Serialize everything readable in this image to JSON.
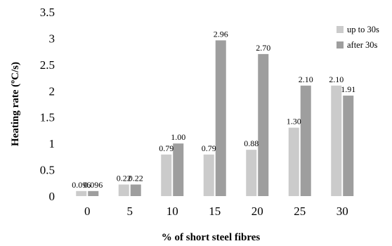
{
  "chart_data": {
    "type": "bar",
    "categories": [
      "0",
      "5",
      "10",
      "15",
      "20",
      "25",
      "30"
    ],
    "series": [
      {
        "name": "up to 30s",
        "color": "#cbcbcb",
        "values": [
          0.096,
          0.22,
          0.79,
          0.79,
          0.88,
          1.3,
          2.1
        ],
        "labels": [
          "0.096",
          "0.22",
          "0.79",
          "0.79",
          "0.88",
          "1.30",
          "2.10"
        ]
      },
      {
        "name": "after 30s",
        "color": "#9e9e9e",
        "values": [
          0.096,
          0.22,
          1.0,
          2.96,
          2.7,
          2.1,
          1.91
        ],
        "labels": [
          "0.096",
          "0.22",
          "1.00",
          "2.96",
          "2.70",
          "2.10",
          "1.91"
        ]
      }
    ],
    "xlabel": "% of short steel fibres",
    "ylabel": "Heating rate (ºC/s)",
    "ylim": [
      0,
      3.5
    ],
    "yticks": [
      "0",
      "0.5",
      "1",
      "1.5",
      "2",
      "2.5",
      "3",
      "3.5"
    ],
    "grid": false,
    "legend_position": "top-right"
  }
}
